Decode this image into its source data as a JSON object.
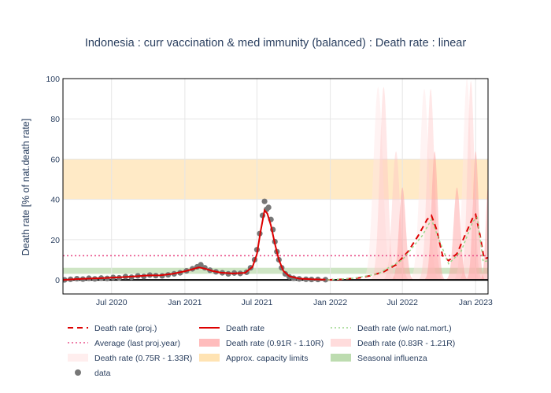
{
  "chart_data": {
    "type": "line",
    "title": "Indonesia : curr vaccination & med immunity (balanced) : Death rate : linear",
    "xlabel": "",
    "ylabel": "Death rate [% of nat.death rate]",
    "xlim": [
      "2020-03-01",
      "2023-02-01"
    ],
    "ylim": [
      -7,
      100
    ],
    "y_ticks": [
      0,
      20,
      40,
      60,
      80,
      100
    ],
    "x_ticks": [
      {
        "date": "2020-07-01",
        "label": "Jul 2020"
      },
      {
        "date": "2021-01-01",
        "label": "Jan 2021"
      },
      {
        "date": "2021-07-01",
        "label": "Jul 2021"
      },
      {
        "date": "2022-01-01",
        "label": "Jan 2022"
      },
      {
        "date": "2022-07-01",
        "label": "Jul 2022"
      },
      {
        "date": "2023-01-01",
        "label": "Jan 2023"
      }
    ],
    "bands": [
      {
        "name": "Approx. capacity limits",
        "y0": 40,
        "y1": 60,
        "color": "#ffe3b3"
      },
      {
        "name": "Seasonal influenza",
        "y0": 3,
        "y1": 6,
        "color": "#bddcb0"
      }
    ],
    "average_line": {
      "name": "Average (last proj.year)",
      "y": 12,
      "color": "#e8508a"
    },
    "series": [
      {
        "name": "data",
        "kind": "markers",
        "color": "#777777",
        "points": [
          [
            "2020-03-05",
            0
          ],
          [
            "2020-03-20",
            0.3
          ],
          [
            "2020-04-05",
            0.6
          ],
          [
            "2020-04-20",
            0.4
          ],
          [
            "2020-05-05",
            0.8
          ],
          [
            "2020-05-20",
            0.5
          ],
          [
            "2020-06-05",
            0.9
          ],
          [
            "2020-06-20",
            0.7
          ],
          [
            "2020-07-05",
            1.2
          ],
          [
            "2020-07-20",
            1.0
          ],
          [
            "2020-08-05",
            1.6
          ],
          [
            "2020-08-20",
            1.3
          ],
          [
            "2020-09-05",
            2.0
          ],
          [
            "2020-09-20",
            1.7
          ],
          [
            "2020-10-05",
            2.4
          ],
          [
            "2020-10-20",
            2.1
          ],
          [
            "2020-11-05",
            2.0
          ],
          [
            "2020-11-20",
            2.5
          ],
          [
            "2020-12-05",
            3.0
          ],
          [
            "2020-12-20",
            3.5
          ],
          [
            "2021-01-05",
            4.5
          ],
          [
            "2021-01-20",
            5.5
          ],
          [
            "2021-02-01",
            6.5
          ],
          [
            "2021-02-10",
            7.5
          ],
          [
            "2021-02-20",
            6.0
          ],
          [
            "2021-03-05",
            4.8
          ],
          [
            "2021-03-20",
            4.0
          ],
          [
            "2021-04-05",
            3.5
          ],
          [
            "2021-04-20",
            3.0
          ],
          [
            "2021-05-05",
            3.4
          ],
          [
            "2021-05-20",
            3.2
          ],
          [
            "2021-06-05",
            3.8
          ],
          [
            "2021-06-15",
            6.0
          ],
          [
            "2021-06-25",
            10.0
          ],
          [
            "2021-07-01",
            15.0
          ],
          [
            "2021-07-08",
            23.0
          ],
          [
            "2021-07-15",
            32.0
          ],
          [
            "2021-07-20",
            39.0
          ],
          [
            "2021-07-25",
            35.0
          ],
          [
            "2021-07-30",
            36.0
          ],
          [
            "2021-08-05",
            30.0
          ],
          [
            "2021-08-10",
            25.0
          ],
          [
            "2021-08-15",
            19.0
          ],
          [
            "2021-08-20",
            14.0
          ],
          [
            "2021-08-25",
            10.0
          ],
          [
            "2021-09-01",
            6.0
          ],
          [
            "2021-09-10",
            3.0
          ],
          [
            "2021-09-20",
            1.5
          ],
          [
            "2021-10-01",
            0.8
          ],
          [
            "2021-10-15",
            0.5
          ],
          [
            "2021-11-01",
            0.3
          ],
          [
            "2021-11-15",
            0.2
          ],
          [
            "2021-12-01",
            0.2
          ],
          [
            "2021-12-20",
            0.1
          ]
        ]
      },
      {
        "name": "Death rate",
        "kind": "line",
        "color": "#dd0000",
        "points": [
          [
            "2020-03-01",
            0
          ],
          [
            "2020-04-01",
            0.4
          ],
          [
            "2020-05-01",
            0.6
          ],
          [
            "2020-06-01",
            0.8
          ],
          [
            "2020-07-01",
            1.1
          ],
          [
            "2020-08-01",
            1.4
          ],
          [
            "2020-09-01",
            1.8
          ],
          [
            "2020-10-01",
            2.2
          ],
          [
            "2020-11-01",
            2.3
          ],
          [
            "2020-12-01",
            3.0
          ],
          [
            "2021-01-01",
            4.3
          ],
          [
            "2021-01-20",
            5.3
          ],
          [
            "2021-02-05",
            6.2
          ],
          [
            "2021-02-20",
            5.6
          ],
          [
            "2021-03-10",
            4.5
          ],
          [
            "2021-04-01",
            3.6
          ],
          [
            "2021-05-01",
            3.2
          ],
          [
            "2021-06-01",
            3.5
          ],
          [
            "2021-06-20",
            6.5
          ],
          [
            "2021-07-01",
            13.0
          ],
          [
            "2021-07-10",
            24.0
          ],
          [
            "2021-07-20",
            34.5
          ],
          [
            "2021-07-27",
            33.0
          ],
          [
            "2021-08-05",
            27.0
          ],
          [
            "2021-08-15",
            18.0
          ],
          [
            "2021-08-25",
            10.0
          ],
          [
            "2021-09-05",
            4.5
          ],
          [
            "2021-09-20",
            1.8
          ],
          [
            "2021-10-15",
            0.6
          ],
          [
            "2021-11-15",
            0.3
          ],
          [
            "2021-12-20",
            0.1
          ]
        ]
      },
      {
        "name": "Death rate (proj.)",
        "kind": "dashed",
        "color": "#dd0000",
        "points": [
          [
            "2021-12-25",
            0
          ],
          [
            "2022-02-01",
            0.3
          ],
          [
            "2022-03-15",
            1.0
          ],
          [
            "2022-04-15",
            2.2
          ],
          [
            "2022-05-15",
            4.0
          ],
          [
            "2022-06-15",
            7.5
          ],
          [
            "2022-07-15",
            14.0
          ],
          [
            "2022-08-10",
            22.0
          ],
          [
            "2022-09-01",
            30.0
          ],
          [
            "2022-09-12",
            32.0
          ],
          [
            "2022-09-25",
            25.0
          ],
          [
            "2022-10-10",
            12.0
          ],
          [
            "2022-10-25",
            9.5
          ],
          [
            "2022-11-15",
            13.0
          ],
          [
            "2022-12-05",
            22.0
          ],
          [
            "2022-12-25",
            31.0
          ],
          [
            "2023-01-01",
            32.5
          ],
          [
            "2023-01-12",
            22.0
          ],
          [
            "2023-01-22",
            10.5
          ],
          [
            "2023-02-01",
            11.0
          ]
        ]
      },
      {
        "name": "Death rate (w/o nat.mort.)",
        "kind": "dotted",
        "color": "#9bd68a",
        "points": [
          [
            "2021-12-25",
            0
          ],
          [
            "2022-03-01",
            0.8
          ],
          [
            "2022-05-01",
            3.0
          ],
          [
            "2022-07-01",
            10.0
          ],
          [
            "2022-08-20",
            22.0
          ],
          [
            "2022-09-12",
            30.0
          ],
          [
            "2022-10-01",
            20.0
          ],
          [
            "2022-10-25",
            8.0
          ],
          [
            "2022-11-25",
            14.0
          ],
          [
            "2022-12-25",
            29.0
          ],
          [
            "2023-01-05",
            31.0
          ],
          [
            "2023-01-20",
            9.0
          ],
          [
            "2023-02-01",
            9.5
          ]
        ]
      },
      {
        "name": "Death rate (0.91R - 1.10R)",
        "kind": "band",
        "color": "#ff9a9a",
        "opacity": 0.45,
        "peaks": [
          {
            "center": "2022-07-01",
            "width_days": 26,
            "top": 46
          },
          {
            "center": "2022-09-20",
            "width_days": 24,
            "top": 64
          },
          {
            "center": "2022-11-15",
            "width_days": 26,
            "top": 46
          },
          {
            "center": "2023-01-01",
            "width_days": 22,
            "top": 64
          },
          {
            "center": "2023-02-01",
            "width_days": 18,
            "top": 46
          }
        ]
      },
      {
        "name": "Death rate (0.83R - 1.21R)",
        "kind": "band",
        "color": "#ffc4c4",
        "opacity": 0.4,
        "peaks": [
          {
            "center": "2022-05-15",
            "width_days": 30,
            "top": 96
          },
          {
            "center": "2022-06-15",
            "width_days": 30,
            "top": 64
          },
          {
            "center": "2022-09-10",
            "width_days": 28,
            "top": 95
          },
          {
            "center": "2022-12-20",
            "width_days": 26,
            "top": 99
          }
        ]
      },
      {
        "name": "Death rate (0.75R - 1.33R)",
        "kind": "band",
        "color": "#ffe4e4",
        "opacity": 0.45,
        "peaks": [
          {
            "center": "2022-05-01",
            "width_days": 36,
            "top": 96
          },
          {
            "center": "2022-08-25",
            "width_days": 34,
            "top": 95
          },
          {
            "center": "2022-12-10",
            "width_days": 30,
            "top": 100
          }
        ]
      }
    ],
    "legend": [
      {
        "label": "Death rate (proj.)",
        "kind": "dashed",
        "color": "#dd0000"
      },
      {
        "label": "Death rate",
        "kind": "line",
        "color": "#dd0000"
      },
      {
        "label": "Death rate (w/o nat.mort.)",
        "kind": "dotted",
        "color": "#9bd68a"
      },
      {
        "label": "Average (last proj.year)",
        "kind": "dotted",
        "color": "#e8508a"
      },
      {
        "label": "Death rate (0.91R - 1.10R)",
        "kind": "fill",
        "color": "#ffbcbc"
      },
      {
        "label": "Death rate (0.83R - 1.21R)",
        "kind": "fill",
        "color": "#ffdcdc"
      },
      {
        "label": "Death rate (0.75R - 1.33R)",
        "kind": "fill",
        "color": "#ffeeee"
      },
      {
        "label": "Approx. capacity limits",
        "kind": "fill",
        "color": "#ffe3b3"
      },
      {
        "label": "Seasonal influenza",
        "kind": "fill",
        "color": "#bddcb0"
      },
      {
        "label": "data",
        "kind": "marker",
        "color": "#777777"
      }
    ],
    "legend_position": "bottom"
  }
}
